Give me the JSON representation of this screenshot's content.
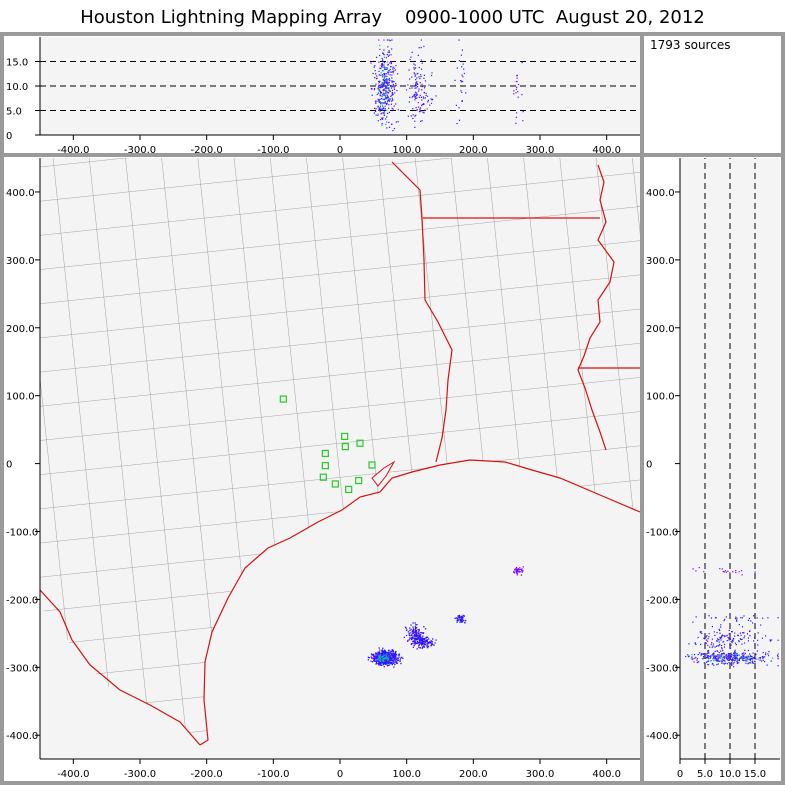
{
  "title": "Houston Lightning Mapping Array    0900-1000 UTC  August 20, 2012",
  "source_count_label": "1793 sources",
  "colors": {
    "panel_bg": "#f4f4f4",
    "frame": "#9a9a9a",
    "state_border": "#d81010",
    "county_border": "#8c8c8c",
    "station": "#22cc22",
    "source_blue": "#1a1aff",
    "source_purple": "#8000ff",
    "source_cyan": "#00b0b0"
  },
  "chart_data": [
    {
      "type": "scatter",
      "panel": "altitude-vs-east-west",
      "xlim": [
        -450,
        450
      ],
      "ylim": [
        0,
        20
      ],
      "xticks": [
        -400,
        -300,
        -200,
        -100,
        0,
        100,
        200,
        300,
        400
      ],
      "xtick_labels": [
        "-400.0",
        "-300.0",
        "-200.0",
        "-100.0",
        "0",
        "100.0",
        "200.0",
        "300.0",
        "400.0"
      ],
      "yticks": [
        0,
        5,
        10,
        15
      ],
      "ytick_labels": [
        "0",
        "5.0",
        "10.0",
        "15.0"
      ],
      "dashed_levels": [
        5,
        10,
        15
      ]
    },
    {
      "type": "scatter",
      "panel": "plan-view-map",
      "xlim": [
        -450,
        450
      ],
      "ylim": [
        -435,
        450
      ],
      "xticks": [
        -400,
        -300,
        -200,
        -100,
        0,
        100,
        200,
        300,
        400
      ],
      "xtick_labels": [
        "-400.0",
        "-300.0",
        "-200.0",
        "-100.0",
        "0",
        "100.0",
        "200.0",
        "300.0",
        "400.0"
      ],
      "yticks": [
        -400,
        -300,
        -200,
        -100,
        0,
        100,
        200,
        300,
        400
      ],
      "ytick_labels": [
        "-400.0",
        "-300.0",
        "-200.0",
        "-100.0",
        "0",
        "100.0",
        "200.0",
        "300.0",
        "400.0"
      ],
      "stations": [
        [
          -85,
          95
        ],
        [
          -22,
          15
        ],
        [
          8,
          25
        ],
        [
          30,
          30
        ],
        [
          7,
          40
        ],
        [
          -22,
          -3
        ],
        [
          -25,
          -20
        ],
        [
          -7,
          -30
        ],
        [
          28,
          -25
        ],
        [
          13,
          -38
        ],
        [
          48,
          -2
        ]
      ],
      "clusters": [
        {
          "x": 67,
          "y": -285,
          "rx": 15,
          "ry": 8,
          "count": 620,
          "color_key": "source_blue"
        },
        {
          "x": 65,
          "y": -285,
          "rx": 8,
          "ry": 4,
          "count": 120,
          "color_key": "source_cyan"
        },
        {
          "x": 112,
          "y": -248,
          "rx": 10,
          "ry": 10,
          "count": 110,
          "color_key": "source_blue"
        },
        {
          "x": 122,
          "y": -262,
          "rx": 14,
          "ry": 7,
          "count": 150,
          "color_key": "source_blue"
        },
        {
          "x": 180,
          "y": -228,
          "rx": 6,
          "ry": 5,
          "count": 50,
          "color_key": "source_blue"
        },
        {
          "x": 265,
          "y": -157,
          "rx": 6,
          "ry": 4,
          "count": 40,
          "color_key": "source_purple"
        }
      ]
    },
    {
      "type": "scatter",
      "panel": "north-south-vs-altitude",
      "xlim": [
        0,
        20
      ],
      "ylim": [
        -435,
        450
      ],
      "xticks": [
        0,
        5,
        10,
        15
      ],
      "xtick_labels": [
        "0",
        "5.0",
        "10.0",
        "15.0"
      ],
      "yticks": [
        -400,
        -300,
        -200,
        -100,
        0,
        100,
        200,
        300,
        400
      ],
      "ytick_labels": [
        "-400.0",
        "-300.0",
        "-200.0",
        "-100.0",
        "0",
        "100.0",
        "200.0",
        "300.0",
        "400.0"
      ],
      "dashed_levels": [
        5,
        10,
        15
      ]
    }
  ]
}
